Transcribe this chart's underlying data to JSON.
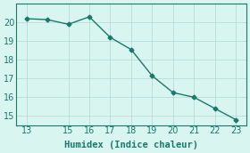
{
  "x": [
    13,
    14,
    15,
    16,
    17,
    18,
    19,
    20,
    21,
    22,
    23
  ],
  "y": [
    20.2,
    20.15,
    19.9,
    20.3,
    19.2,
    18.55,
    17.15,
    16.25,
    16.0,
    15.4,
    14.8
  ],
  "xlabel": "Humidex (Indice chaleur)",
  "ylim": [
    14.5,
    21.0
  ],
  "xlim": [
    12.5,
    23.5
  ],
  "yticks": [
    15,
    16,
    17,
    18,
    19,
    20
  ],
  "xticks": [
    13,
    15,
    16,
    17,
    18,
    19,
    20,
    21,
    22,
    23
  ],
  "line_color": "#1a7a6a",
  "bg_color": "#d8f5f0",
  "grid_color": "#b8ddd8",
  "marker": "D",
  "marker_size": 2.5,
  "line_width": 1.0,
  "tick_labelsize": 7,
  "xlabel_fontsize": 7.5
}
